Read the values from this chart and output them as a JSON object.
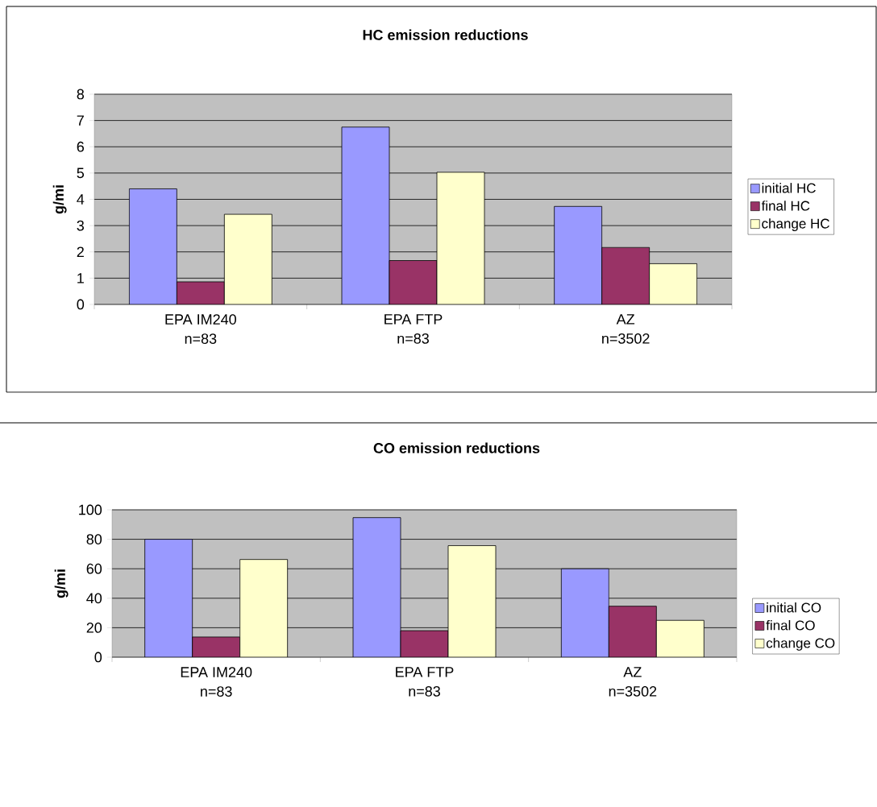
{
  "chart_data": [
    {
      "type": "bar",
      "title": "HC emission reductions",
      "ylabel": "g/mi",
      "categories": [
        "EPA IM240",
        "EPA FTP",
        "AZ"
      ],
      "series": [
        {
          "name": "initial HC",
          "color": "#9999ff",
          "values": [
            4.4,
            6.75,
            3.73
          ]
        },
        {
          "name": "final HC",
          "color": "#993366",
          "values": [
            0.86,
            1.67,
            2.17
          ]
        },
        {
          "name": "change HC",
          "color": "#ffffcc",
          "values": [
            3.43,
            5.03,
            1.55
          ]
        }
      ],
      "ylim": [
        0,
        8
      ],
      "yticks": [
        0,
        1,
        2,
        3,
        4,
        5,
        6,
        7,
        8
      ],
      "grid": "y",
      "legend": "right",
      "annotations": [
        "n=83",
        "n=83",
        "n=3502"
      ]
    },
    {
      "type": "bar",
      "title": "CO emission reductions",
      "ylabel": "g/mi",
      "categories": [
        "EPA IM240",
        "EPA FTP",
        "AZ"
      ],
      "series": [
        {
          "name": "initial CO",
          "color": "#9999ff",
          "values": [
            80,
            94.7,
            60
          ]
        },
        {
          "name": "final CO",
          "color": "#993366",
          "values": [
            13.7,
            18,
            34.6
          ]
        },
        {
          "name": "change CO",
          "color": "#ffffcc",
          "values": [
            66.3,
            75.7,
            25
          ]
        }
      ],
      "ylim": [
        0,
        100
      ],
      "yticks": [
        0,
        20,
        40,
        60,
        80,
        100
      ],
      "grid": "y",
      "legend": "right",
      "annotations": [
        "n=83",
        "n=83",
        "n=3502"
      ]
    }
  ]
}
